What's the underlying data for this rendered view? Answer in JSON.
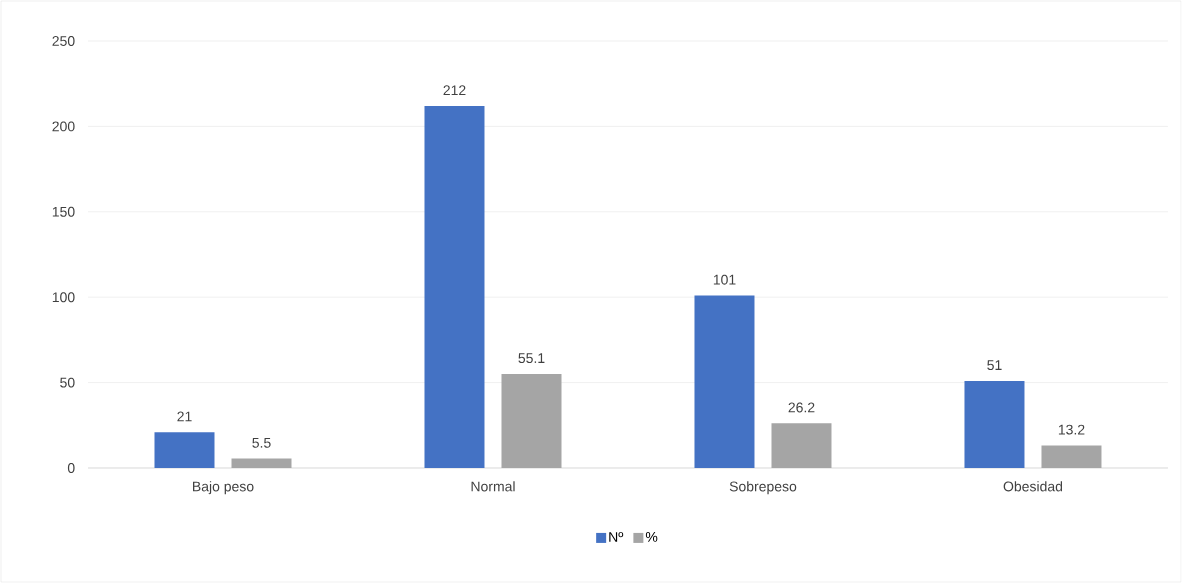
{
  "chart_data": {
    "type": "bar",
    "categories": [
      "Bajo peso",
      "Normal",
      "Sobrepeso",
      "Obesidad"
    ],
    "series": [
      {
        "name": "Nº",
        "color": "#4472c4",
        "values": [
          21,
          212,
          101,
          51
        ]
      },
      {
        "name": "%",
        "color": "#a5a5a5",
        "values": [
          5.5,
          55.1,
          26.2,
          13.2
        ]
      }
    ],
    "ylim": [
      0,
      250
    ],
    "yticks": [
      0,
      50,
      100,
      150,
      200,
      250
    ],
    "grid": "y",
    "legend": "bottom",
    "data_labels": true
  }
}
